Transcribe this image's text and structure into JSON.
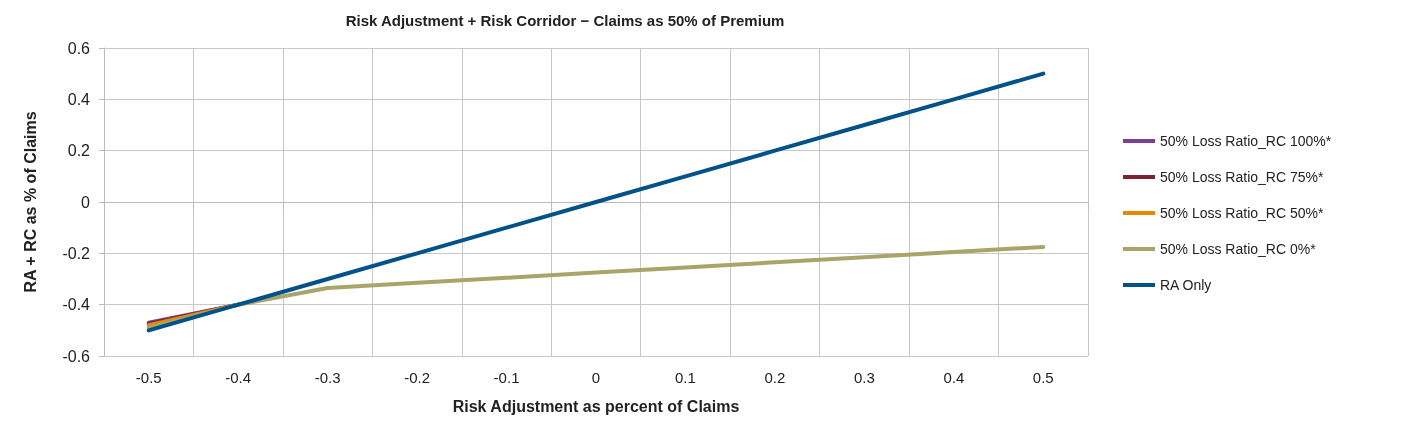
{
  "chart_data": {
    "type": "line",
    "title": "Risk Adjustment + Risk Corridor − Claims as 50% of Premium",
    "xlabel": "Risk Adjustment as percent of Claims",
    "ylabel": "RA + RC as % of Claims",
    "categories": [
      "-0.5",
      "-0.4",
      "-0.3",
      "-0.2",
      "-0.1",
      "0",
      "0.1",
      "0.2",
      "0.3",
      "0.4",
      "0.5"
    ],
    "series": [
      {
        "name": "50% Loss Ratio_RC 100%*",
        "color": "#7b3f98",
        "values": [
          -0.47,
          -0.4,
          null,
          null,
          null,
          null,
          null,
          null,
          null,
          null,
          null
        ]
      },
      {
        "name": "50% Loss Ratio_RC 75%*",
        "color": "#7a2331",
        "values": [
          -0.475,
          -0.4,
          null,
          null,
          null,
          null,
          null,
          null,
          null,
          null,
          null
        ]
      },
      {
        "name": "50% Loss Ratio_RC 50%*",
        "color": "#e58a00",
        "values": [
          -0.48,
          -0.4,
          null,
          null,
          null,
          null,
          null,
          null,
          null,
          null,
          null
        ]
      },
      {
        "name": "50% Loss Ratio_RC 0%*",
        "color": "#a9a46a",
        "values": [
          -0.49,
          -0.4,
          -0.335,
          -0.315,
          -0.295,
          -0.275,
          -0.255,
          -0.235,
          -0.215,
          -0.195,
          -0.175
        ]
      },
      {
        "name": "RA Only",
        "color": "#005288",
        "values": [
          -0.5,
          -0.4,
          -0.3,
          -0.2,
          -0.1,
          0,
          0.1,
          0.2,
          0.3,
          0.4,
          0.5
        ]
      }
    ],
    "ylim": [
      -0.6,
      0.6
    ],
    "yticks": [
      -0.6,
      -0.4,
      -0.2,
      0,
      0.2,
      0.4,
      0.6
    ],
    "grid": true,
    "legend": "right",
    "marker": "none",
    "line_style": "solid"
  }
}
